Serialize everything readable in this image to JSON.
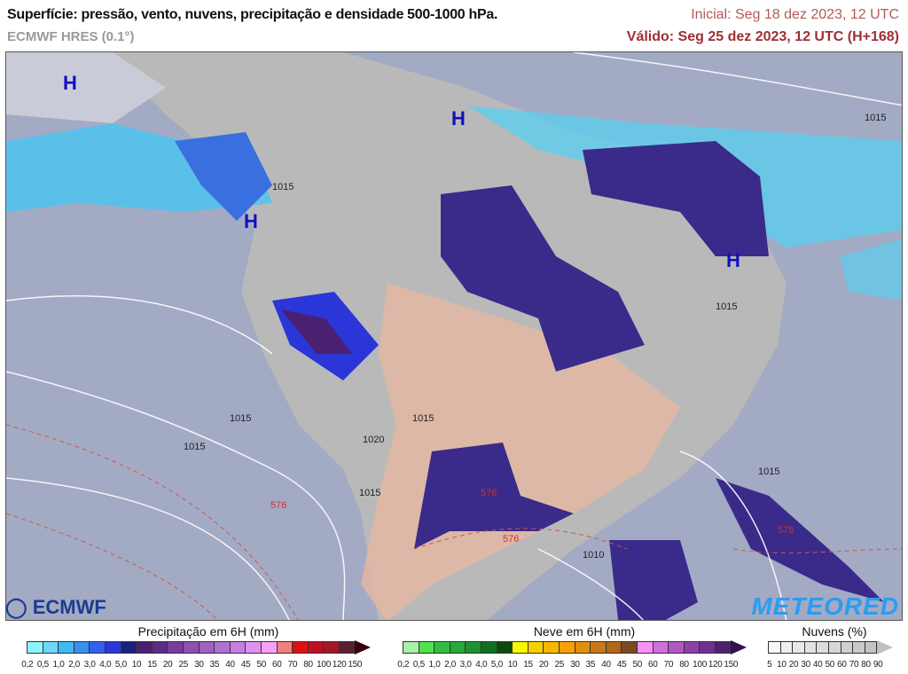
{
  "header": {
    "title": "Superfície: pressão, vento, nuvens, precipitação e densidade 500-1000 hPa.",
    "model": "ECMWF HRES (0.1°)",
    "initial": "Inicial: Seg 18 dez 2023, 12 UTC",
    "valid": "Válido: Seg 25 dez 2023, 12 UTC (H+168)"
  },
  "map": {
    "high_pressure_labels": [
      "H",
      "H",
      "H",
      "H"
    ],
    "isobar_labels": [
      "1015",
      "1015",
      "1015",
      "1015",
      "1020",
      "1015",
      "1015",
      "1015",
      "1010",
      "1015"
    ],
    "thickness_labels": [
      "576",
      "576",
      "576",
      "576"
    ],
    "land_color": "#b9b9b9",
    "ocean_color": "#a3aac4"
  },
  "logos": {
    "left": "ECMWF",
    "right": "METEORED"
  },
  "legends": {
    "precipitation": {
      "title": "Precipitação em 6H (mm)",
      "labels": [
        "0,2",
        "0,5",
        "1,0",
        "2,0",
        "3,0",
        "4,0",
        "5,0",
        "10",
        "15",
        "20",
        "25",
        "30",
        "35",
        "40",
        "45",
        "50",
        "60",
        "70",
        "80",
        "100",
        "120",
        "150"
      ],
      "colors": [
        "#8ef4fb",
        "#6fd6f7",
        "#3dbaf5",
        "#3890f0",
        "#3460f0",
        "#2a36d8",
        "#1c1f80",
        "#4a2070",
        "#5e2a88",
        "#7a3aa0",
        "#9050b0",
        "#a060c0",
        "#b070d0",
        "#c880e0",
        "#e090f0",
        "#f8a0f8",
        "#f08080",
        "#e01010",
        "#c01020",
        "#a01828",
        "#5a2030"
      ],
      "arrow_color": "#3a0010"
    },
    "snow": {
      "title": "Neve em 6H (mm)",
      "labels": [
        "0,2",
        "0,5",
        "1,0",
        "2,0",
        "3,0",
        "4,0",
        "5,0",
        "10",
        "15",
        "20",
        "25",
        "30",
        "35",
        "40",
        "45",
        "50",
        "60",
        "70",
        "80",
        "100",
        "120",
        "150"
      ],
      "colors": [
        "#a8f0a8",
        "#50e050",
        "#30c040",
        "#28a838",
        "#209030",
        "#107020",
        "#0a4a10",
        "#f8f800",
        "#f8d000",
        "#f8b800",
        "#f8a000",
        "#e09010",
        "#c87818",
        "#b06818",
        "#7a4a20",
        "#f890f8",
        "#d070d8",
        "#b058c0",
        "#9040a8",
        "#703090",
        "#502070"
      ],
      "arrow_color": "#301050"
    },
    "clouds": {
      "title": "Nuvens (%)",
      "labels": [
        "5",
        "10",
        "20",
        "30",
        "40",
        "50",
        "60",
        "70",
        "80",
        "90"
      ],
      "colors": [
        "#f8f8f8",
        "#f0f0f0",
        "#e8e8e8",
        "#e2e2e2",
        "#dcdcdc",
        "#d6d6d6",
        "#d0d0d0",
        "#cacaca",
        "#c4c4c4"
      ],
      "arrow_color": "#c0c0c0"
    }
  }
}
